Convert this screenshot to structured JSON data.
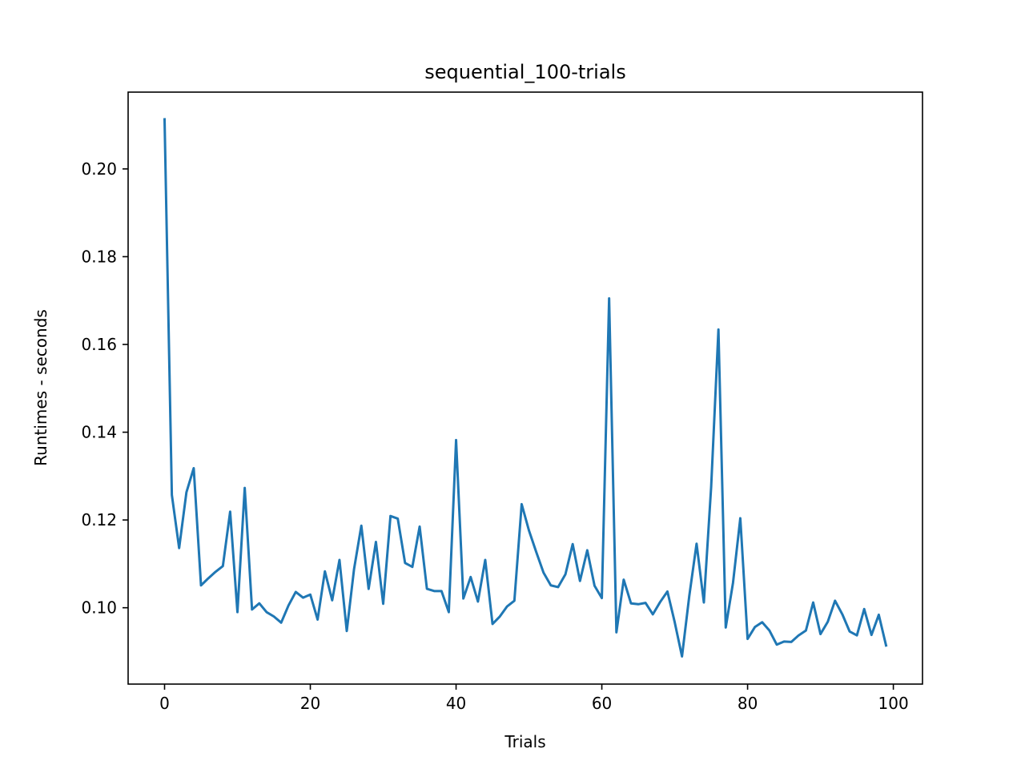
{
  "chart_data": {
    "type": "line",
    "title": "sequential_100-trials",
    "xlabel": "Trials",
    "ylabel": "Runtimes - seconds",
    "xlim": [
      -5,
      104
    ],
    "ylim": [
      0.0826,
      0.2175
    ],
    "xticks": [
      0,
      20,
      40,
      60,
      80,
      100
    ],
    "yticks": [
      0.1,
      0.12,
      0.14,
      0.16,
      0.18,
      0.2
    ],
    "xtick_labels": [
      "0",
      "20",
      "40",
      "60",
      "80",
      "100"
    ],
    "ytick_labels": [
      "0.10",
      "0.12",
      "0.14",
      "0.16",
      "0.18",
      "0.20"
    ],
    "grid": false,
    "series": [
      {
        "color": "#1f77b4",
        "x": [
          0,
          1,
          2,
          3,
          4,
          5,
          6,
          7,
          8,
          9,
          10,
          11,
          12,
          13,
          14,
          15,
          16,
          17,
          18,
          19,
          20,
          21,
          22,
          23,
          24,
          25,
          26,
          27,
          28,
          29,
          30,
          31,
          32,
          33,
          34,
          35,
          36,
          37,
          38,
          39,
          40,
          41,
          42,
          43,
          44,
          45,
          46,
          47,
          48,
          49,
          50,
          51,
          52,
          53,
          54,
          55,
          56,
          57,
          58,
          59,
          60,
          61,
          62,
          63,
          64,
          65,
          66,
          67,
          68,
          69,
          70,
          71,
          72,
          73,
          74,
          75,
          76,
          77,
          78,
          79,
          80,
          81,
          82,
          83,
          84,
          85,
          86,
          87,
          88,
          89,
          90,
          91,
          92,
          93,
          94,
          95,
          96,
          97,
          98,
          99
        ],
        "y": [
          0.2113,
          0.1257,
          0.1136,
          0.1263,
          0.1318,
          0.1051,
          0.1067,
          0.1082,
          0.1095,
          0.1219,
          0.099,
          0.1273,
          0.0996,
          0.101,
          0.099,
          0.098,
          0.0966,
          0.1005,
          0.1036,
          0.1023,
          0.103,
          0.0973,
          0.1083,
          0.1017,
          0.1109,
          0.0947,
          0.1088,
          0.1187,
          0.1043,
          0.115,
          0.1009,
          0.1209,
          0.1203,
          0.1102,
          0.1093,
          0.1185,
          0.1043,
          0.1038,
          0.1038,
          0.099,
          0.1382,
          0.1021,
          0.107,
          0.1014,
          0.1109,
          0.0963,
          0.098,
          0.1003,
          0.1016,
          0.1236,
          0.1176,
          0.1127,
          0.108,
          0.1051,
          0.1047,
          0.1076,
          0.1145,
          0.1061,
          0.1131,
          0.105,
          0.1022,
          0.1705,
          0.0944,
          0.1064,
          0.101,
          0.1008,
          0.1011,
          0.0985,
          0.1013,
          0.1037,
          0.0967,
          0.0889,
          0.1027,
          0.1146,
          0.1012,
          0.1275,
          0.1634,
          0.0955,
          0.1057,
          0.1204,
          0.0929,
          0.0956,
          0.0967,
          0.0948,
          0.0916,
          0.0923,
          0.0922,
          0.0937,
          0.0948,
          0.1012,
          0.094,
          0.0968,
          0.1016,
          0.0985,
          0.0946,
          0.0937,
          0.0997,
          0.0938,
          0.0984,
          0.0914
        ]
      }
    ]
  }
}
